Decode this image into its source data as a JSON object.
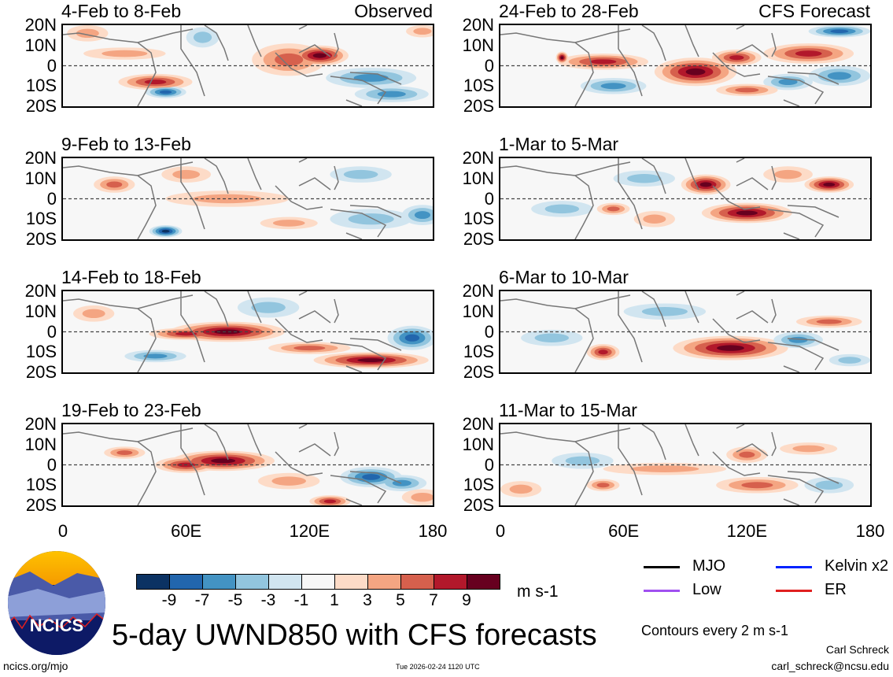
{
  "title": "5-day UWND850 with CFS forecasts",
  "labels": {
    "observed": "Observed",
    "forecast": "CFS Forecast"
  },
  "y_ticks": [
    "20N",
    "10N",
    "0",
    "10S",
    "20S"
  ],
  "x_ticks": [
    "0",
    "60E",
    "120E",
    "180"
  ],
  "panels": [
    {
      "title": "4-Feb to 8-Feb",
      "tag": "observed",
      "blobs": [
        [
          125,
          5,
          14,
          5,
          9
        ],
        [
          110,
          3,
          18,
          8,
          5
        ],
        [
          45,
          -8,
          18,
          4,
          7
        ],
        [
          30,
          6,
          20,
          3,
          3
        ],
        [
          12,
          16,
          10,
          4,
          3
        ],
        [
          50,
          -13,
          10,
          3,
          -7
        ],
        [
          150,
          -6,
          22,
          5,
          -5
        ],
        [
          160,
          -14,
          18,
          4,
          -5
        ],
        [
          68,
          14,
          8,
          5,
          -3
        ],
        [
          175,
          17,
          8,
          3,
          3
        ]
      ]
    },
    {
      "title": "9-Feb to 13-Feb",
      "tag": "",
      "blobs": [
        [
          50,
          -16,
          8,
          3,
          -9
        ],
        [
          80,
          0,
          30,
          4,
          3
        ],
        [
          25,
          7,
          10,
          4,
          5
        ],
        [
          175,
          -8,
          10,
          5,
          -5
        ],
        [
          150,
          -10,
          20,
          5,
          -3
        ],
        [
          110,
          -12,
          14,
          3,
          3
        ],
        [
          60,
          12,
          12,
          4,
          3
        ],
        [
          145,
          12,
          15,
          4,
          -3
        ]
      ]
    },
    {
      "title": "14-Feb to 18-Feb",
      "tag": "",
      "blobs": [
        [
          80,
          0,
          28,
          5,
          9
        ],
        [
          60,
          -1,
          18,
          3,
          7
        ],
        [
          150,
          -14,
          28,
          4,
          9
        ],
        [
          120,
          -8,
          20,
          3,
          5
        ],
        [
          45,
          -12,
          15,
          3,
          -5
        ],
        [
          170,
          -3,
          12,
          6,
          -7
        ],
        [
          15,
          9,
          10,
          4,
          3
        ],
        [
          100,
          12,
          15,
          5,
          -3
        ]
      ]
    },
    {
      "title": "19-Feb to 23-Feb",
      "tag": "",
      "blobs": [
        [
          78,
          2,
          25,
          5,
          9
        ],
        [
          60,
          0,
          15,
          4,
          7
        ],
        [
          150,
          -6,
          15,
          5,
          -7
        ],
        [
          165,
          -9,
          12,
          4,
          -5
        ],
        [
          130,
          -18,
          10,
          3,
          7
        ],
        [
          30,
          6,
          10,
          3,
          5
        ],
        [
          110,
          -8,
          15,
          4,
          3
        ],
        [
          175,
          -16,
          10,
          4,
          3
        ]
      ]
    },
    {
      "title": "24-Feb to 28-Feb",
      "tag": "forecast",
      "blobs": [
        [
          95,
          -3,
          20,
          7,
          9
        ],
        [
          50,
          2,
          22,
          4,
          7
        ],
        [
          115,
          4,
          12,
          4,
          7
        ],
        [
          150,
          6,
          22,
          5,
          7
        ],
        [
          30,
          4,
          3,
          3,
          9
        ],
        [
          165,
          -5,
          15,
          5,
          -5
        ],
        [
          55,
          -10,
          16,
          4,
          -5
        ],
        [
          140,
          -8,
          12,
          4,
          -5
        ],
        [
          165,
          17,
          15,
          3,
          -7
        ],
        [
          120,
          -12,
          15,
          3,
          5
        ]
      ]
    },
    {
      "title": "1-Mar to 5-Mar",
      "tag": "",
      "blobs": [
        [
          120,
          -7,
          22,
          5,
          9
        ],
        [
          100,
          7,
          12,
          5,
          9
        ],
        [
          160,
          7,
          12,
          4,
          9
        ],
        [
          55,
          -5,
          8,
          3,
          5
        ],
        [
          30,
          -5,
          15,
          4,
          -3
        ],
        [
          75,
          -10,
          10,
          4,
          3
        ],
        [
          140,
          12,
          12,
          4,
          3
        ],
        [
          70,
          10,
          15,
          4,
          -3
        ]
      ]
    },
    {
      "title": "6-Mar to 10-Mar",
      "tag": "",
      "blobs": [
        [
          112,
          -8,
          28,
          6,
          9
        ],
        [
          50,
          -10,
          8,
          4,
          7
        ],
        [
          160,
          5,
          16,
          3,
          5
        ],
        [
          145,
          -4,
          12,
          4,
          -5
        ],
        [
          25,
          -3,
          15,
          4,
          -3
        ],
        [
          80,
          10,
          20,
          4,
          -3
        ],
        [
          170,
          -14,
          10,
          3,
          -3
        ]
      ]
    },
    {
      "title": "11-Mar to 15-Mar",
      "tag": "",
      "blobs": [
        [
          125,
          -10,
          20,
          4,
          5
        ],
        [
          120,
          5,
          10,
          4,
          5
        ],
        [
          50,
          -10,
          8,
          3,
          5
        ],
        [
          80,
          -2,
          30,
          3,
          3
        ],
        [
          40,
          2,
          15,
          4,
          -3
        ],
        [
          160,
          -10,
          12,
          4,
          -3
        ],
        [
          150,
          8,
          14,
          3,
          3
        ],
        [
          10,
          -12,
          10,
          4,
          3
        ]
      ]
    }
  ],
  "colorbar": {
    "ticks": [
      "-9",
      "-7",
      "-5",
      "-3",
      "-1",
      "1",
      "3",
      "5",
      "7",
      "9"
    ],
    "units": "m s-1",
    "colors": [
      "#0b3263",
      "#2266ad",
      "#4393c3",
      "#92c5de",
      "#d1e5f0",
      "#f7f7f7",
      "#fddbc7",
      "#f4a582",
      "#d6604d",
      "#b2182b",
      "#67001f"
    ]
  },
  "legend": [
    {
      "label": "MJO",
      "color": "#000000"
    },
    {
      "label": "Kelvin x2",
      "color": "#0022ff"
    },
    {
      "label": "Low",
      "color": "#a050f0"
    },
    {
      "label": "ER",
      "color": "#e02020"
    }
  ],
  "contours_note": "Contours every 2 m s-1",
  "logo": "NCICS",
  "footer": {
    "url": "ncics.org/mjo",
    "timestamp": "Tue 2026-02-24 1120 UTC",
    "author": "Carl Schreck",
    "email": "carl_schreck@ncsu.edu"
  }
}
